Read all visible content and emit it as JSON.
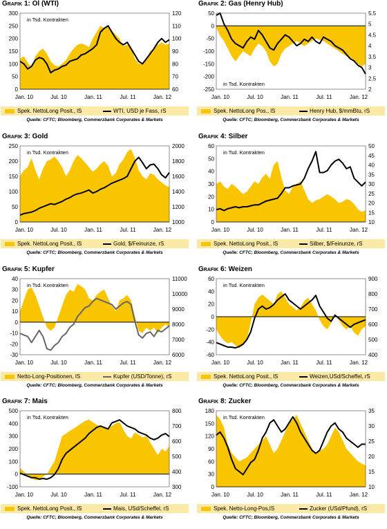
{
  "source_text": "Quelle: CFTC; Bloomberg, Commerzbank Corporates & Markets",
  "unit_text": "in Tsd. Kontrakten",
  "colors": {
    "area": "#f9c400",
    "legend_bg": "#fde9a6",
    "line": "#000000",
    "line_gray": "#666666"
  },
  "panels": [
    {
      "cap": "Grafik 1:",
      "name": "Öl (WTI)",
      "legend_area": "Spek. NettoLong Posit., lS",
      "legend_line": "WTI, USD je Fass, rS"
    },
    {
      "cap": "Grafik 2:",
      "name": "Gas (Henry Hub)",
      "legend_area": "Spek. NettoLong Pos., lS",
      "legend_line": "Henry Hub, $/mmBtu, rS"
    },
    {
      "cap": "Grafik 3:",
      "name": "Gold",
      "legend_area": "Spek. NettoLong Posit., lS",
      "legend_line": "Gold, $/Feinunze, rS"
    },
    {
      "cap": "Grafik 4:",
      "name": "Silber",
      "legend_area": "Spek. NettoLong Posit., lS",
      "legend_line": "Silber, $/Feinunze, rS"
    },
    {
      "cap": "Grafik 5:",
      "name": "Kupfer",
      "legend_area": "Netto-Long-Positionen, lS",
      "legend_line": "Kupfer (USD/Tonne), rS"
    },
    {
      "cap": "Grafik 6:",
      "name": "Weizen",
      "legend_area": "Spek. NettoLong Posit., lS",
      "legend_line": "Weizen,USd/Scheffel, rS"
    },
    {
      "cap": "Grafik 7:",
      "name": "Mais",
      "legend_area": "Spek. NettoLong Posit., lS",
      "legend_line": "Mais, USd/Scheffel, rS"
    },
    {
      "cap": "Grafik 8:",
      "name": "Zucker",
      "legend_area": "Spek. Netto-Long-Pos,lS",
      "legend_line": "Zucker (USd/Pfund), rS"
    }
  ],
  "chart_data": [
    {
      "type": "area",
      "title": "Öl (WTI)",
      "x_ticks": [
        "Jan. 10",
        "Jul. 10",
        "Jan. 11",
        "Jul. 11",
        "Jan. 12"
      ],
      "left_ylim": [
        0,
        300
      ],
      "left_ticks": [
        0,
        50,
        100,
        150,
        200,
        250,
        300
      ],
      "right_ylim": [
        60,
        120
      ],
      "right_ticks": [
        60,
        70,
        80,
        90,
        100,
        110,
        120
      ],
      "series": [
        {
          "name": "Spek. NettoLong Posit., lS",
          "axis": "left",
          "kind": "area",
          "values": [
            120,
            130,
            105,
            85,
            130,
            150,
            160,
            140,
            110,
            95,
            90,
            100,
            115,
            140,
            160,
            175,
            180,
            175,
            165,
            200,
            225,
            250,
            240,
            245,
            230,
            215,
            200,
            170,
            175,
            165,
            120,
            100,
            105,
            120,
            150,
            160,
            175,
            185,
            175,
            180
          ]
        },
        {
          "name": "WTI, USD je Fass, rS",
          "axis": "right",
          "kind": "line",
          "values": [
            82,
            80,
            76,
            78,
            83,
            85,
            84,
            80,
            73,
            75,
            76,
            78,
            79,
            82,
            83,
            84,
            87,
            88,
            90,
            92,
            95,
            105,
            108,
            110,
            105,
            100,
            97,
            95,
            97,
            92,
            87,
            82,
            80,
            84,
            88,
            92,
            97,
            100,
            97,
            99
          ]
        }
      ]
    },
    {
      "type": "area",
      "title": "Gas (Henry Hub)",
      "x_ticks": [
        "Jan. 10",
        "Jul. 10",
        "Jan. 11",
        "Jul. 11",
        "Jan. 12"
      ],
      "left_ylim": [
        -250,
        50
      ],
      "left_ticks": [
        -250,
        -200,
        -150,
        -100,
        -50,
        0,
        50
      ],
      "right_ylim": [
        2,
        5.5
      ],
      "right_ticks": [
        2,
        2.5,
        3,
        3.5,
        4,
        4.5,
        5,
        5.5
      ],
      "series": [
        {
          "name": "Spek. NettoLong Pos., lS",
          "axis": "left",
          "kind": "area",
          "values": [
            -5,
            -40,
            -60,
            -90,
            -120,
            -140,
            -120,
            -100,
            -110,
            -120,
            -90,
            -70,
            -80,
            -100,
            -140,
            -160,
            -150,
            -110,
            -90,
            -80,
            -70,
            -60,
            -70,
            -80,
            -70,
            -60,
            -50,
            -55,
            -60,
            -70,
            -80,
            -90,
            -100,
            -110,
            -120,
            -130,
            -140,
            -150,
            -160,
            -150
          ]
        },
        {
          "name": "Henry Hub, $/mmBtu, rS",
          "axis": "right",
          "kind": "line",
          "values": [
            5.4,
            5.5,
            5.0,
            4.7,
            4.3,
            4.1,
            4.0,
            3.9,
            4.2,
            4.4,
            4.3,
            4.7,
            4.5,
            4.2,
            3.9,
            3.8,
            4.1,
            4.3,
            4.5,
            4.4,
            4.2,
            4.0,
            4.1,
            4.3,
            4.2,
            4.4,
            4.2,
            4.1,
            4.4,
            4.3,
            4.2,
            4.0,
            3.9,
            3.8,
            3.6,
            3.4,
            3.3,
            3.1,
            3.0,
            2.7
          ]
        }
      ]
    },
    {
      "type": "area",
      "title": "Gold",
      "x_ticks": [
        "Jan. 10",
        "Jul. 10",
        "Jan. 11",
        "Jul. 11",
        "Jan. 12"
      ],
      "left_ylim": [
        0,
        250
      ],
      "left_ticks": [
        0,
        50,
        100,
        150,
        200,
        250
      ],
      "right_ylim": [
        1000,
        2000
      ],
      "right_ticks": [
        1000,
        1200,
        1400,
        1600,
        1800,
        2000
      ],
      "series": [
        {
          "name": "Spek. NettoLong Posit., lS",
          "axis": "left",
          "kind": "area",
          "values": [
            150,
            170,
            180,
            210,
            170,
            140,
            175,
            200,
            205,
            215,
            200,
            180,
            150,
            170,
            200,
            220,
            210,
            195,
            180,
            165,
            175,
            190,
            200,
            185,
            150,
            160,
            190,
            205,
            230,
            240,
            210,
            170,
            150,
            140,
            160,
            155,
            140,
            130,
            120,
            115
          ]
        },
        {
          "name": "Gold, $/Feinunze, rS",
          "axis": "right",
          "kind": "line",
          "values": [
            1090,
            1110,
            1120,
            1130,
            1150,
            1180,
            1200,
            1220,
            1240,
            1230,
            1250,
            1270,
            1300,
            1320,
            1350,
            1370,
            1380,
            1400,
            1420,
            1380,
            1400,
            1430,
            1450,
            1480,
            1510,
            1530,
            1550,
            1570,
            1600,
            1700,
            1800,
            1850,
            1780,
            1700,
            1750,
            1760,
            1700,
            1620,
            1580,
            1650
          ]
        }
      ]
    },
    {
      "type": "area",
      "title": "Silber",
      "x_ticks": [
        "Jan. 10",
        "Jul. 10",
        "Jan. 11",
        "Jul. 11",
        "Jan. 12"
      ],
      "left_ylim": [
        0,
        60
      ],
      "left_ticks": [
        0,
        10,
        20,
        30,
        40,
        50,
        60
      ],
      "right_ylim": [
        10,
        50
      ],
      "right_ticks": [
        10,
        15,
        20,
        25,
        30,
        35,
        40,
        45,
        50
      ],
      "series": [
        {
          "name": "Spek. NettoLong Posit., lS",
          "axis": "left",
          "kind": "area",
          "values": [
            30,
            32,
            28,
            26,
            30,
            28,
            25,
            22,
            24,
            28,
            32,
            30,
            35,
            38,
            34,
            45,
            48,
            35,
            25,
            22,
            28,
            30,
            32,
            25,
            18,
            15,
            17,
            18,
            20,
            22,
            20,
            18,
            15,
            16,
            18,
            17,
            14,
            10,
            8,
            9
          ]
        },
        {
          "name": "Silber, $/Feinunze, rS",
          "axis": "right",
          "kind": "line",
          "values": [
            16.5,
            17,
            16,
            17,
            17.5,
            18,
            17.5,
            18,
            18,
            18.5,
            19,
            19,
            20,
            21,
            21.5,
            22,
            22.5,
            25,
            28,
            28,
            29,
            29.5,
            30,
            33,
            38,
            42,
            47,
            36,
            36,
            37,
            40,
            42,
            43,
            41,
            38,
            39,
            33,
            31,
            29,
            31
          ]
        }
      ]
    },
    {
      "type": "area",
      "title": "Kupfer",
      "x_ticks": [
        "Jan. 10",
        "Jul. 10",
        "Jan. 11",
        "Jul. 11",
        "Jan. 12"
      ],
      "left_ylim": [
        -30,
        40
      ],
      "left_ticks": [
        -30,
        -20,
        -10,
        0,
        10,
        20,
        30,
        40
      ],
      "right_ylim": [
        6000,
        11000
      ],
      "right_ticks": [
        6000,
        7000,
        8000,
        9000,
        10000,
        11000
      ],
      "series": [
        {
          "name": "Netto-Long-Positionen, lS",
          "axis": "left",
          "kind": "area",
          "values": [
            10,
            20,
            30,
            32,
            25,
            15,
            5,
            -5,
            -8,
            -5,
            5,
            15,
            25,
            30,
            28,
            35,
            33,
            30,
            22,
            20,
            25,
            28,
            30,
            22,
            15,
            10,
            20,
            22,
            25,
            20,
            5,
            -8,
            -10,
            -5,
            -8,
            -5,
            -10,
            -5,
            -2,
            -5
          ]
        },
        {
          "name": "Kupfer (USD/Tonne), rS",
          "axis": "right",
          "kind": "line",
          "values": [
            7400,
            7300,
            7200,
            6800,
            7200,
            7600,
            7200,
            6400,
            6300,
            6600,
            6800,
            7200,
            7400,
            7800,
            8000,
            8500,
            8800,
            9100,
            9200,
            9500,
            9700,
            9600,
            9500,
            9400,
            9300,
            9000,
            9200,
            9400,
            9500,
            9300,
            8200,
            7300,
            7100,
            7400,
            7500,
            7200,
            7600,
            7500,
            7700,
            7900
          ]
        }
      ]
    },
    {
      "type": "area",
      "title": "Weizen",
      "x_ticks": [
        "Jan. 10",
        "Jul. 10",
        "Jan. 11",
        "Jul. 11",
        "Jan. 12"
      ],
      "left_ylim": [
        -60,
        60
      ],
      "left_ticks": [
        -60,
        -40,
        -20,
        0,
        20,
        40,
        60
      ],
      "right_ylim": [
        400,
        900
      ],
      "right_ticks": [
        400,
        500,
        600,
        700,
        800,
        900
      ],
      "series": [
        {
          "name": "Spek. NettoLong Posit., lS",
          "axis": "left",
          "kind": "area",
          "values": [
            -20,
            -30,
            -38,
            -42,
            -40,
            -45,
            -50,
            -45,
            -35,
            -10,
            20,
            30,
            35,
            30,
            25,
            20,
            35,
            40,
            30,
            20,
            15,
            10,
            15,
            25,
            30,
            20,
            10,
            -5,
            -15,
            -20,
            -10,
            5,
            -5,
            -15,
            -20,
            -15,
            -25,
            -30,
            -20,
            -15
          ]
        },
        {
          "name": "Weizen,USd/Scheffel, rS",
          "axis": "right",
          "kind": "line",
          "values": [
            480,
            470,
            460,
            450,
            450,
            445,
            455,
            470,
            500,
            550,
            640,
            700,
            720,
            700,
            710,
            730,
            760,
            780,
            800,
            760,
            740,
            720,
            700,
            720,
            740,
            760,
            790,
            720,
            680,
            640,
            620,
            660,
            640,
            620,
            600,
            580,
            600,
            610,
            620,
            630
          ]
        }
      ]
    },
    {
      "type": "area",
      "title": "Mais",
      "x_ticks": [
        "Jan. 10",
        "Jul. 10",
        "Jan. 11",
        "Jul. 11",
        "Jan. 12"
      ],
      "left_ylim": [
        -100,
        500
      ],
      "left_ticks": [
        -100,
        0,
        100,
        200,
        300,
        400,
        500
      ],
      "right_ylim": [
        300,
        800
      ],
      "right_ticks": [
        300,
        400,
        500,
        600,
        700,
        800
      ],
      "series": [
        {
          "name": "Spek. NettoLong Posit., lS",
          "axis": "left",
          "kind": "area",
          "values": [
            50,
            20,
            -10,
            -30,
            -50,
            -40,
            -20,
            0,
            50,
            100,
            200,
            300,
            320,
            340,
            360,
            380,
            400,
            420,
            430,
            410,
            390,
            380,
            370,
            360,
            380,
            400,
            410,
            350,
            300,
            280,
            330,
            310,
            290,
            300,
            250,
            200,
            150,
            200,
            180,
            220
          ]
        },
        {
          "name": "Mais, USd/Scheffel, rS",
          "axis": "right",
          "kind": "line",
          "values": [
            390,
            380,
            370,
            360,
            360,
            350,
            355,
            350,
            360,
            380,
            420,
            480,
            520,
            540,
            560,
            580,
            600,
            620,
            650,
            670,
            690,
            700,
            690,
            680,
            720,
            730,
            740,
            720,
            700,
            690,
            680,
            660,
            650,
            640,
            620,
            610,
            620,
            640,
            650,
            630
          ]
        }
      ]
    },
    {
      "type": "area",
      "title": "Zucker",
      "x_ticks": [
        "Jan. 10",
        "Jul. 10",
        "Jan. 11",
        "Jul. 11",
        "Jan. 12"
      ],
      "left_ylim": [
        0,
        180
      ],
      "left_ticks": [
        0,
        30,
        60,
        90,
        120,
        150,
        180
      ],
      "right_ylim": [
        10,
        35
      ],
      "right_ticks": [
        10,
        15,
        20,
        25,
        30,
        35
      ],
      "series": [
        {
          "name": "Spek. Netto-Long-Pos,lS",
          "axis": "left",
          "kind": "area",
          "values": [
            170,
            160,
            140,
            100,
            80,
            70,
            60,
            65,
            70,
            80,
            90,
            100,
            110,
            120,
            100,
            80,
            90,
            110,
            130,
            150,
            160,
            170,
            150,
            130,
            110,
            90,
            80,
            85,
            90,
            100,
            120,
            140,
            130,
            110,
            90,
            80,
            70,
            60,
            55,
            50
          ]
        },
        {
          "name": "Zucker (USd/Pfund), rS",
          "axis": "right",
          "kind": "line",
          "values": [
            27,
            28,
            26,
            23,
            19,
            16,
            15,
            14,
            16,
            18,
            19,
            22,
            26,
            28,
            31,
            32,
            30,
            28,
            29,
            31,
            33,
            31,
            28,
            26,
            24,
            22,
            21,
            22,
            25,
            28,
            30,
            31,
            29,
            28,
            26,
            25,
            24,
            23,
            24,
            24
          ]
        }
      ]
    }
  ]
}
